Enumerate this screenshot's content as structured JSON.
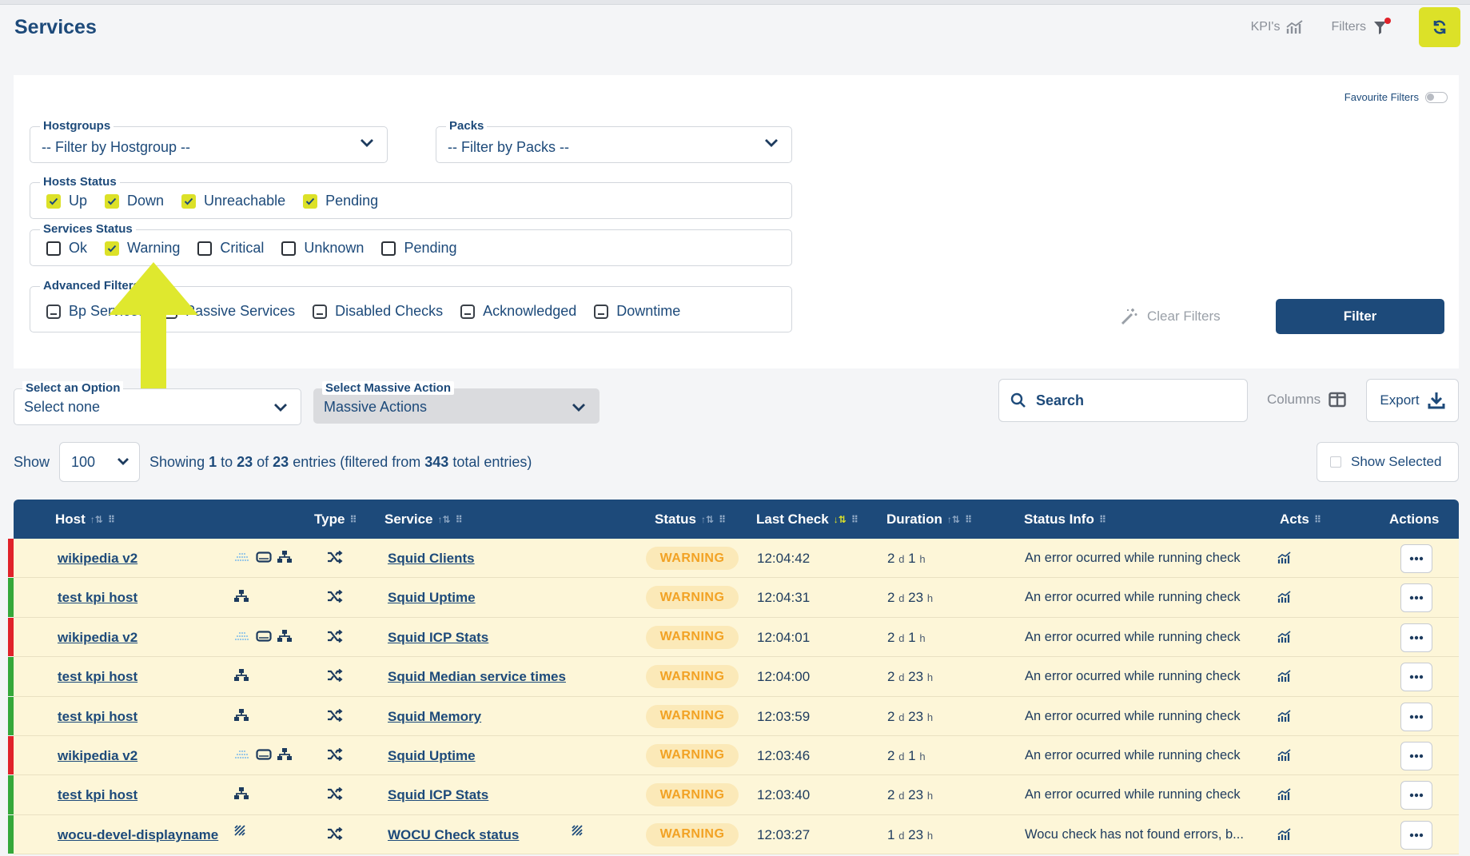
{
  "page": {
    "title": "Services"
  },
  "top_actions": {
    "kpis_label": "KPI's",
    "filters_label": "Filters"
  },
  "favourite_filters": "Favourite Filters",
  "hostgroups": {
    "label": "Hostgroups",
    "value": "-- Filter by Hostgroup --"
  },
  "packs": {
    "label": "Packs",
    "value": "-- Filter by Packs --"
  },
  "hosts_status": {
    "label": "Hosts Status",
    "items": [
      {
        "label": "Up",
        "checked": true
      },
      {
        "label": "Down",
        "checked": true
      },
      {
        "label": "Unreachable",
        "checked": true
      },
      {
        "label": "Pending",
        "checked": true
      }
    ]
  },
  "services_status": {
    "label": "Services Status",
    "items": [
      {
        "label": "Ok",
        "checked": false
      },
      {
        "label": "Warning",
        "checked": true
      },
      {
        "label": "Critical",
        "checked": false
      },
      {
        "label": "Unknown",
        "checked": false
      },
      {
        "label": "Pending",
        "checked": false
      }
    ]
  },
  "advanced_filters": {
    "label": "Advanced Filters",
    "items": [
      {
        "label": "Bp Services"
      },
      {
        "label": "Passive Services"
      },
      {
        "label": "Disabled Checks"
      },
      {
        "label": "Acknowledged"
      },
      {
        "label": "Downtime"
      }
    ]
  },
  "clear_filters_label": "Clear Filters",
  "filter_button_label": "Filter",
  "select_option": {
    "label": "Select an Option",
    "value": "Select none"
  },
  "massive_action": {
    "label": "Select Massive Action",
    "value": "Massive Actions"
  },
  "search": {
    "placeholder": "Search"
  },
  "columns_label": "Columns",
  "export_label": "Export",
  "show": {
    "label": "Show",
    "value": "100",
    "entries_prefix": "Showing ",
    "from": "1",
    "to_word": " to ",
    "to": "23",
    "of_word": " of ",
    "total": "23",
    "suffix_a": " entries (filtered from ",
    "filtered": "343",
    "suffix_b": " total entries)"
  },
  "show_selected_label": "Show Selected",
  "table": {
    "headers": {
      "host": "Host",
      "type": "Type",
      "service": "Service",
      "status": "Status",
      "last_check": "Last Check",
      "duration": "Duration",
      "status_info": "Status Info",
      "acts": "Acts",
      "actions": "Actions"
    },
    "rows": [
      {
        "host": "wikipedia v2",
        "host_icons": "triple",
        "service": "Squid Clients",
        "service_icon": false,
        "status": "WARNING",
        "last_check": "12:04:42",
        "dur_d": "2",
        "dur_h": "1",
        "info": "An error ocurred while running check",
        "bar_color": "#e0222a"
      },
      {
        "host": "test kpi host",
        "host_icons": "network",
        "service": "Squid Uptime",
        "service_icon": false,
        "status": "WARNING",
        "last_check": "12:04:31",
        "dur_d": "2",
        "dur_h": "23",
        "info": "An error ocurred while running check",
        "bar_color": "#35a83a"
      },
      {
        "host": "wikipedia v2",
        "host_icons": "triple",
        "service": "Squid ICP Stats",
        "service_icon": false,
        "status": "WARNING",
        "last_check": "12:04:01",
        "dur_d": "2",
        "dur_h": "1",
        "info": "An error ocurred while running check",
        "bar_color": "#e0222a"
      },
      {
        "host": "test kpi host",
        "host_icons": "network",
        "service": "Squid Median service times",
        "service_icon": false,
        "status": "WARNING",
        "last_check": "12:04:00",
        "dur_d": "2",
        "dur_h": "23",
        "info": "An error ocurred while running check",
        "bar_color": "#35a83a"
      },
      {
        "host": "test kpi host",
        "host_icons": "network",
        "service": "Squid Memory",
        "service_icon": false,
        "status": "WARNING",
        "last_check": "12:03:59",
        "dur_d": "2",
        "dur_h": "23",
        "info": "An error ocurred while running check",
        "bar_color": "#35a83a"
      },
      {
        "host": "wikipedia v2",
        "host_icons": "triple",
        "service": "Squid Uptime",
        "service_icon": false,
        "status": "WARNING",
        "last_check": "12:03:46",
        "dur_d": "2",
        "dur_h": "1",
        "info": "An error ocurred while running check",
        "bar_color": "#e0222a"
      },
      {
        "host": "test kpi host",
        "host_icons": "network",
        "service": "Squid ICP Stats",
        "service_icon": false,
        "status": "WARNING",
        "last_check": "12:03:40",
        "dur_d": "2",
        "dur_h": "23",
        "info": "An error ocurred while running check",
        "bar_color": "#35a83a"
      },
      {
        "host": "wocu-devel-displayname",
        "host_icons": "wocu",
        "service": "WOCU Check status",
        "service_icon": true,
        "status": "WARNING",
        "last_check": "12:03:27",
        "dur_d": "1",
        "dur_h": "23",
        "info": "Wocu check has not found errors, b...",
        "bar_color": "#35a83a"
      }
    ],
    "dur_d_unit": "d",
    "dur_h_unit": "h"
  },
  "colors": {
    "primary": "#1d4a7a",
    "accent": "#dce128",
    "warning": "#f2a224",
    "row_bg": "#fdf6d8",
    "critical_bar": "#e0222a",
    "ok_bar": "#35a83a"
  }
}
